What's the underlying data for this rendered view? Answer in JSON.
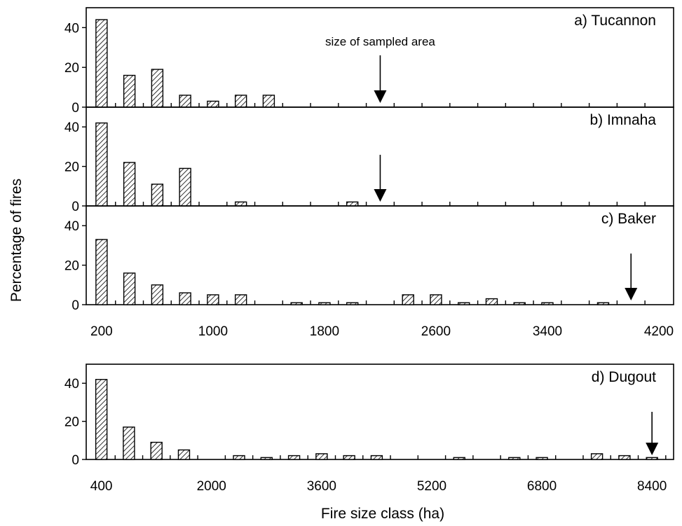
{
  "chart_data": [
    {
      "type": "bar",
      "title": "a) Tucannon",
      "annotation": "size of sampled area",
      "categories": [
        200,
        400,
        600,
        800,
        1000,
        1200,
        1400,
        1600,
        1800,
        2000,
        2200,
        2400,
        2600,
        2800,
        3000,
        3200,
        3400,
        3600,
        3800,
        4000
      ],
      "values": [
        44,
        16,
        19,
        6,
        3,
        6,
        6,
        0,
        0,
        0,
        0,
        0,
        0,
        0,
        0,
        0,
        0,
        0,
        0,
        0
      ],
      "arrow_x": 2200,
      "ylim": [
        0,
        50
      ],
      "yticks": [
        0,
        20,
        40
      ],
      "xlim": [
        100,
        4200
      ]
    },
    {
      "type": "bar",
      "title": "b) Imnaha",
      "categories": [
        200,
        400,
        600,
        800,
        1000,
        1200,
        1400,
        1600,
        1800,
        2000,
        2200,
        2400,
        2600,
        2800,
        3000,
        3200,
        3400,
        3600,
        3800,
        4000
      ],
      "values": [
        42,
        22,
        11,
        19,
        0,
        2,
        0,
        0,
        0,
        2,
        0,
        0,
        0,
        0,
        0,
        0,
        0,
        0,
        0,
        0
      ],
      "arrow_x": 2200,
      "ylim": [
        0,
        50
      ],
      "yticks": [
        0,
        20,
        40
      ],
      "xlim": [
        100,
        4200
      ]
    },
    {
      "type": "bar",
      "title": "c) Baker",
      "categories": [
        200,
        400,
        600,
        800,
        1000,
        1200,
        1400,
        1600,
        1800,
        2000,
        2200,
        2400,
        2600,
        2800,
        3000,
        3200,
        3400,
        3600,
        3800,
        4000
      ],
      "values": [
        33,
        16,
        10,
        6,
        5,
        5,
        0,
        1,
        1,
        1,
        0,
        5,
        5,
        1,
        3,
        1,
        1,
        0,
        1,
        0
      ],
      "arrow_x": 4000,
      "ylim": [
        0,
        50
      ],
      "yticks": [
        0,
        20,
        40
      ],
      "xlim": [
        100,
        4200
      ],
      "xticks": [
        200,
        1000,
        1800,
        2600,
        3400,
        4200
      ]
    },
    {
      "type": "bar",
      "title": "d) Dugout",
      "categories": [
        400,
        800,
        1200,
        1600,
        2000,
        2400,
        2800,
        3200,
        3600,
        4000,
        4400,
        4800,
        5200,
        5600,
        6000,
        6400,
        6800,
        7200,
        7600,
        8000,
        8400
      ],
      "values": [
        42,
        17,
        9,
        5,
        0,
        2,
        1,
        2,
        3,
        2,
        2,
        0,
        0,
        1,
        0,
        1,
        1,
        0,
        3,
        2,
        1
      ],
      "arrow_x": 8400,
      "ylim": [
        0,
        50
      ],
      "yticks": [
        0,
        20,
        40
      ],
      "xlim": [
        200,
        8500
      ],
      "xticks": [
        400,
        2000,
        3600,
        5200,
        6800,
        8400
      ]
    }
  ],
  "ylabel": "Percentage of fires",
  "xlabel": "Fire size class (ha)"
}
